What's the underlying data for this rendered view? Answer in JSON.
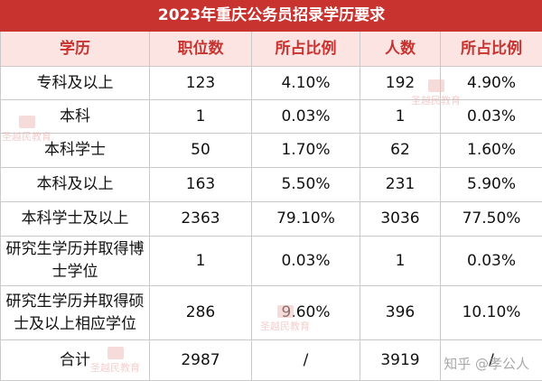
{
  "title": "2023年重庆公务员招录学历要求",
  "headers": [
    "学历",
    "职位数",
    "所占比例",
    "人数",
    "所占比例"
  ],
  "rows": [
    [
      "专科及以上",
      "123",
      "4.10%",
      "192",
      "4.90%"
    ],
    [
      "本科",
      "1",
      "0.03%",
      "1",
      "0.03%"
    ],
    [
      "本科学士",
      "50",
      "1.70%",
      "62",
      "1.60%"
    ],
    [
      "本科及以上",
      "163",
      "5.50%",
      "231",
      "5.90%"
    ],
    [
      "本科学士及以上",
      "2363",
      "79.10%",
      "3036",
      "77.50%"
    ],
    [
      "研究生学历并取得博士学位",
      "1",
      "0.03%",
      "1",
      "0.03%"
    ],
    [
      "研究生学历并取得硕士及以上相应学位",
      "286",
      "9.60%",
      "396",
      "10.10%"
    ],
    [
      "合计",
      "2987",
      "/",
      "3919",
      "/"
    ]
  ],
  "watermark_text": "圣越民教育",
  "zhihu_credit": "知乎 @孝公人",
  "colors": {
    "title_bg": "#c8322f",
    "header_bg": "#fbe4e2",
    "header_text": "#c8322f",
    "border": "#c9c9c9"
  }
}
